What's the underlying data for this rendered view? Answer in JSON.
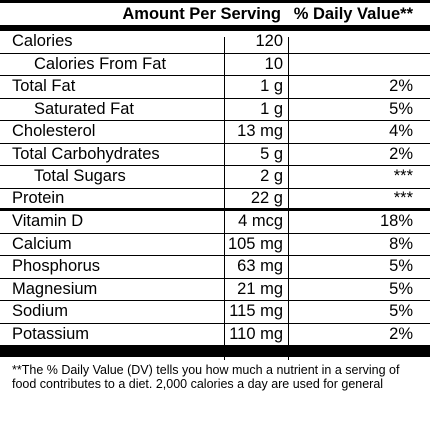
{
  "header": {
    "amount_label": "Amount Per Serving",
    "dv_label": "% Daily Value**"
  },
  "rows": [
    {
      "name": "Calories",
      "amount": "120",
      "dv": "",
      "indent": false,
      "thick": false
    },
    {
      "name": "Calories From Fat",
      "amount": "10",
      "dv": "",
      "indent": true,
      "thick": false
    },
    {
      "name": "Total Fat",
      "amount": "1 g",
      "dv": "2%",
      "indent": false,
      "thick": false
    },
    {
      "name": "Saturated Fat",
      "amount": "1 g",
      "dv": "5%",
      "indent": true,
      "thick": false
    },
    {
      "name": "Cholesterol",
      "amount": "13 mg",
      "dv": "4%",
      "indent": false,
      "thick": false
    },
    {
      "name": "Total Carbohydrates",
      "amount": "5 g",
      "dv": "2%",
      "indent": false,
      "thick": false
    },
    {
      "name": "Total Sugars",
      "amount": "2 g",
      "dv": "***",
      "indent": true,
      "thick": false
    },
    {
      "name": "Protein",
      "amount": "22 g",
      "dv": "***",
      "indent": false,
      "thick": true
    },
    {
      "name": "Vitamin D",
      "amount": "4 mcg",
      "dv": "18%",
      "indent": false,
      "thick": false
    },
    {
      "name": "Calcium",
      "amount": "105 mg",
      "dv": "8%",
      "indent": false,
      "thick": false
    },
    {
      "name": "Phosphorus",
      "amount": "63 mg",
      "dv": "5%",
      "indent": false,
      "thick": false
    },
    {
      "name": "Magnesium",
      "amount": "21 mg",
      "dv": "5%",
      "indent": false,
      "thick": false
    },
    {
      "name": "Sodium",
      "amount": "115 mg",
      "dv": "5%",
      "indent": false,
      "thick": false
    },
    {
      "name": "Potassium",
      "amount": "110 mg",
      "dv": "2%",
      "indent": false,
      "thick": false
    }
  ],
  "footnote": "**The % Daily Value (DV) tells you how much a nutrient in a serving of food contributes to a diet. 2,000 calories a day are used for general"
}
